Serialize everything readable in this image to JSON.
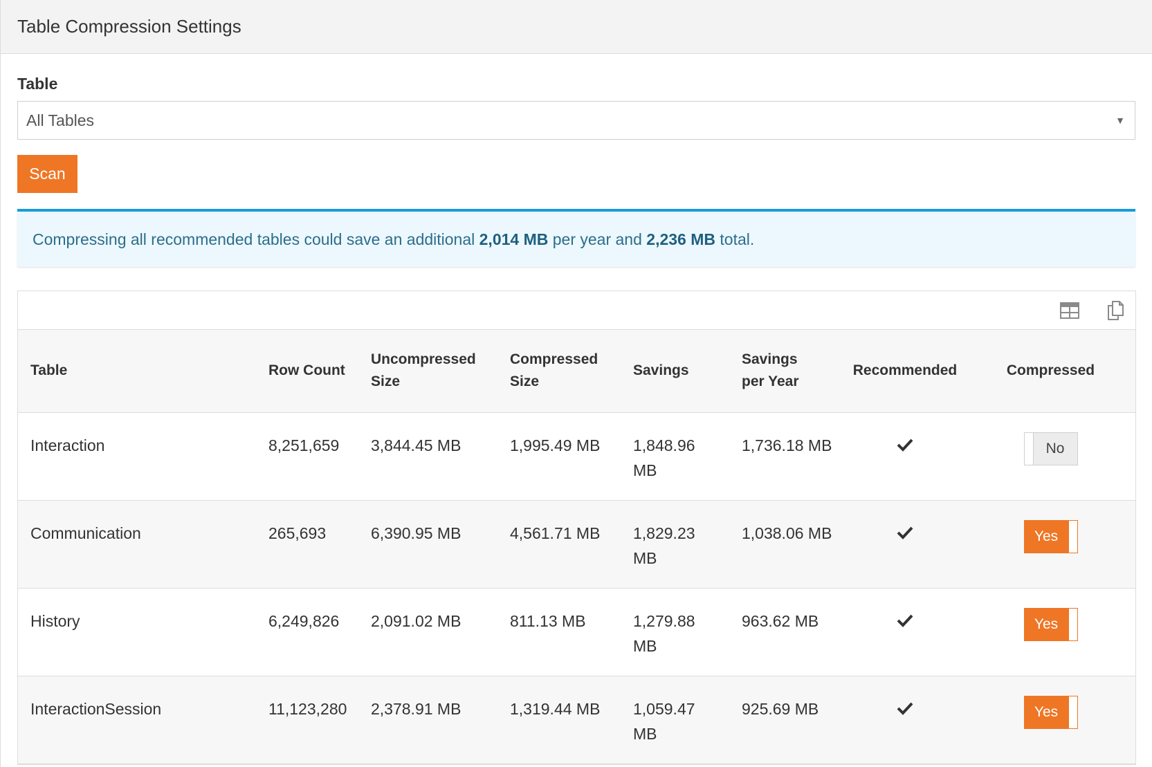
{
  "panel": {
    "title": "Table Compression Settings"
  },
  "filter": {
    "label": "Table",
    "selected": "All Tables"
  },
  "scan_button": {
    "label": "Scan"
  },
  "alert": {
    "text_before": "Compressing all recommended tables could save an additional ",
    "per_year_value": "2,014 MB",
    "text_middle": " per year and ",
    "total_value": "2,236 MB",
    "text_after": " total."
  },
  "grid": {
    "actions": {
      "excel_icon": "table-export-icon",
      "copy_icon": "copy-icon"
    },
    "columns": {
      "table": "Table",
      "row_count": "Row Count",
      "uncompressed_size": "Uncompressed Size",
      "compressed_size": "Compressed Size",
      "savings": "Savings",
      "savings_per_year": "Savings per Year",
      "recommended": "Recommended",
      "compressed": "Compressed"
    },
    "rows": [
      {
        "table": "Interaction",
        "row_count": "8,251,659",
        "uncompressed_size": "3,844.45 MB",
        "compressed_size": "1,995.49 MB",
        "savings": "1,848.96 MB",
        "savings_per_year": "1,736.18 MB",
        "recommended": true,
        "compressed": false,
        "compressed_label": "No"
      },
      {
        "table": "Communication",
        "row_count": "265,693",
        "uncompressed_size": "6,390.95 MB",
        "compressed_size": "4,561.71 MB",
        "savings": "1,829.23 MB",
        "savings_per_year": "1,038.06 MB",
        "recommended": true,
        "compressed": true,
        "compressed_label": "Yes"
      },
      {
        "table": "History",
        "row_count": "6,249,826",
        "uncompressed_size": "2,091.02 MB",
        "compressed_size": "811.13 MB",
        "savings": "1,279.88 MB",
        "savings_per_year": "963.62 MB",
        "recommended": true,
        "compressed": true,
        "compressed_label": "Yes"
      },
      {
        "table": "InteractionSession",
        "row_count": "11,123,280",
        "uncompressed_size": "2,378.91 MB",
        "compressed_size": "1,319.44 MB",
        "savings": "1,059.47 MB",
        "savings_per_year": "925.69 MB",
        "recommended": true,
        "compressed": true,
        "compressed_label": "Yes"
      }
    ]
  },
  "colors": {
    "accent": "#ee7625",
    "alert_border": "#1a9bd7",
    "alert_bg": "#ecf8fd",
    "alert_text": "#2c6d8c"
  }
}
